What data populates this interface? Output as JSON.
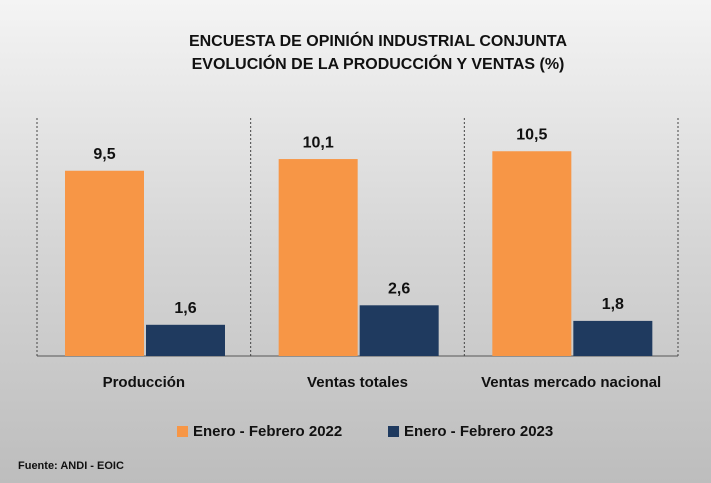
{
  "chart_data": {
    "type": "bar",
    "title": "ENCUESTA DE OPINIÓN INDUSTRIAL CONJUNTA",
    "subtitle": "EVOLUCIÓN DE LA PRODUCCIÓN Y VENTAS (%)",
    "categories": [
      "Producción",
      "Ventas totales",
      "Ventas mercado nacional"
    ],
    "series": [
      {
        "name": "Enero - Febrero 2022",
        "color": "#f79646",
        "values": [
          9.5,
          10.1,
          10.5
        ],
        "value_labels": [
          "9,5",
          "10,1",
          "10,5"
        ]
      },
      {
        "name": "Enero - Febrero 2023",
        "color": "#1f3a5f",
        "values": [
          1.6,
          2.6,
          1.8
        ],
        "value_labels": [
          "1,6",
          "2,6",
          "1,8"
        ]
      }
    ],
    "source": "Fuente: ANDI - EOIC"
  }
}
